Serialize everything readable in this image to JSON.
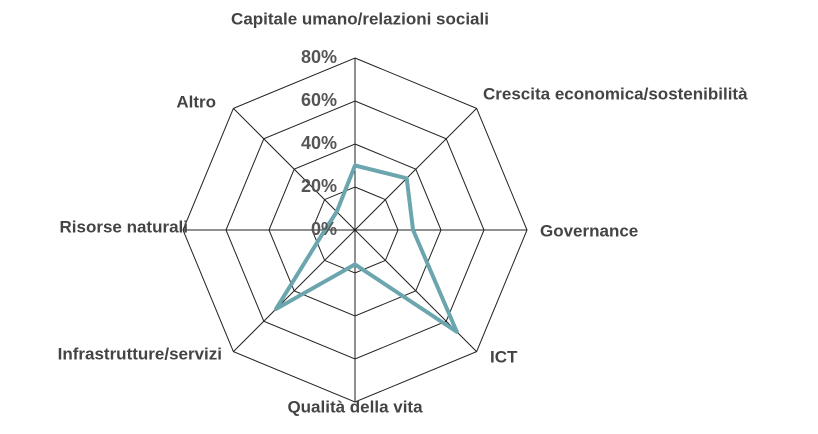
{
  "chart_data": {
    "type": "radar",
    "categories": [
      "Capitale umano/relazioni sociali",
      "Crescita economica/sostenibilità",
      "Governance",
      "ICT",
      "Qualità della vita",
      "Infrastrutture/servizi",
      "Risorse naturali",
      "Altro"
    ],
    "values": [
      30,
      34,
      27,
      67,
      16,
      52,
      14,
      12
    ],
    "color": "#6ba5ae",
    "ylim": [
      0,
      80
    ],
    "yticks": [
      {
        "value": 0,
        "label": "0%"
      },
      {
        "value": 20,
        "label": "20%"
      },
      {
        "value": 40,
        "label": "40%"
      },
      {
        "value": 60,
        "label": "60%"
      },
      {
        "value": 80,
        "label": "80%"
      }
    ],
    "grid": true
  }
}
